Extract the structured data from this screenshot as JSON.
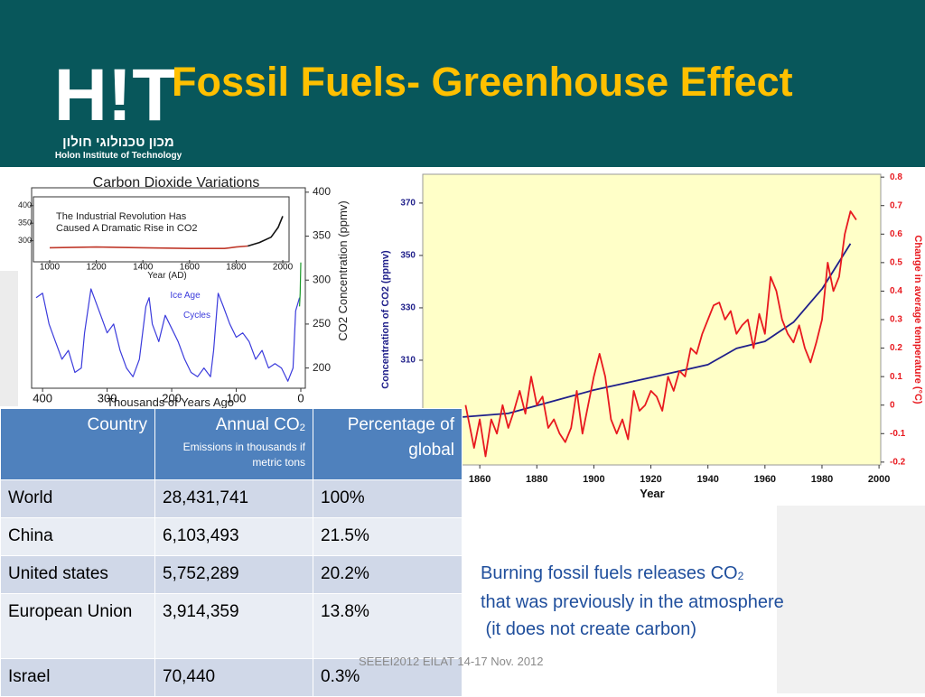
{
  "header": {
    "title": "Fossil Fuels- Greenhouse Effect",
    "logo": "H!T",
    "logo_hebrew": "מכון טכנולוגי חולון",
    "logo_english": "Holon Institute of Technology"
  },
  "chart_data": [
    {
      "type": "line",
      "title": "Carbon Dioxide Variations",
      "xlabel": "Thousands of Years Ago",
      "ylabel": "CO2 Concentration (ppmv)",
      "annotation": [
        "Ice Age",
        "Cycles"
      ],
      "xlim": [
        417,
        -7
      ],
      "ylim": [
        177,
        405
      ],
      "xticks": [
        400,
        300,
        200,
        100,
        0
      ],
      "yticks": [
        200,
        250,
        300,
        350,
        400
      ],
      "series": [
        {
          "color": "#3b3bdc",
          "x": [
            410,
            400,
            390,
            380,
            370,
            360,
            350,
            340,
            335,
            325,
            320,
            310,
            300,
            290,
            280,
            270,
            260,
            250,
            240,
            235,
            230,
            220,
            210,
            200,
            190,
            180,
            170,
            160,
            150,
            140,
            135,
            128,
            120,
            110,
            100,
            90,
            80,
            70,
            60,
            50,
            40,
            30,
            20,
            12,
            8,
            2
          ],
          "values": [
            280,
            285,
            250,
            230,
            210,
            220,
            195,
            200,
            240,
            290,
            280,
            260,
            240,
            250,
            220,
            200,
            190,
            210,
            270,
            280,
            250,
            230,
            260,
            245,
            230,
            210,
            195,
            190,
            200,
            190,
            220,
            285,
            270,
            250,
            235,
            240,
            230,
            210,
            220,
            200,
            205,
            200,
            185,
            200,
            265,
            280
          ]
        },
        {
          "color": "#1a9a2a",
          "x": [
            2,
            1,
            0
          ],
          "values": [
            270,
            285,
            320
          ]
        }
      ]
    },
    {
      "type": "line",
      "annotation": [
        "The Industrial Revolution Has",
        "Caused A Dramatic Rise in CO2"
      ],
      "xlabel": "Year (AD)",
      "xlim": [
        1000,
        2027
      ],
      "ylim": [
        245,
        420
      ],
      "xticks": [
        1000,
        1200,
        1400,
        1600,
        1800,
        2000
      ],
      "yticks": [
        300,
        350,
        400
      ],
      "series": [
        {
          "color": "#c0392b",
          "x": [
            1000,
            1200,
            1400,
            1600,
            1750,
            1800,
            1850
          ],
          "values": [
            280,
            282,
            280,
            278,
            278,
            282,
            285
          ]
        },
        {
          "color": "#111111",
          "x": [
            1850,
            1900,
            1950,
            1980,
            2000
          ],
          "values": [
            285,
            295,
            310,
            338,
            370
          ]
        }
      ]
    },
    {
      "type": "line",
      "xlabel": "Year",
      "ylabel": "Concentration of CO2 (ppmv)",
      "y2label": "Change in average temperature (°C)",
      "xlim": [
        1840,
        2000.6
      ],
      "ylim": [
        270,
        381
      ],
      "y2lim": [
        -0.21,
        0.81
      ],
      "xticks": [
        1860,
        1880,
        1900,
        1920,
        1940,
        1960,
        1980,
        2000
      ],
      "yticks": [
        310,
        330,
        350,
        370
      ],
      "y2ticks": [
        -0.2,
        -0.1,
        0,
        0.1,
        0.2,
        0.3,
        0.4,
        0.5,
        0.6,
        0.7,
        0.8
      ],
      "series": [
        {
          "color": "#1f1f8a",
          "x": [
            1854,
            1870,
            1900,
            1920,
            1940,
            1950,
            1960,
            1970,
            1980,
            1990
          ],
          "values": [
            288.3,
            289.7,
            298.6,
            303.4,
            308.3,
            314.5,
            317.2,
            324.5,
            337.2,
            354.5
          ]
        },
        {
          "color": "#e8191f",
          "axis": "y2",
          "x": [
            1855,
            1858,
            1860,
            1862,
            1864,
            1866,
            1868,
            1870,
            1872,
            1874,
            1876,
            1878,
            1880,
            1882,
            1884,
            1886,
            1888,
            1890,
            1892,
            1894,
            1896,
            1898,
            1900,
            1902,
            1904,
            1906,
            1908,
            1910,
            1912,
            1914,
            1916,
            1918,
            1920,
            1922,
            1924,
            1926,
            1928,
            1930,
            1932,
            1934,
            1936,
            1938,
            1940,
            1942,
            1944,
            1946,
            1948,
            1950,
            1952,
            1954,
            1956,
            1958,
            1960,
            1962,
            1964,
            1966,
            1968,
            1970,
            1972,
            1974,
            1976,
            1978,
            1980,
            1982,
            1984,
            1986,
            1988,
            1990,
            1992
          ],
          "values": [
            0.0,
            -0.15,
            -0.05,
            -0.18,
            -0.05,
            -0.1,
            0.0,
            -0.08,
            -0.02,
            0.05,
            -0.03,
            0.1,
            0.0,
            0.03,
            -0.08,
            -0.05,
            -0.1,
            -0.13,
            -0.08,
            0.05,
            -0.1,
            0.0,
            0.1,
            0.18,
            0.1,
            -0.05,
            -0.1,
            -0.05,
            -0.12,
            0.05,
            -0.02,
            0.0,
            0.05,
            0.03,
            -0.02,
            0.1,
            0.05,
            0.12,
            0.1,
            0.2,
            0.18,
            0.25,
            0.3,
            0.35,
            0.36,
            0.3,
            0.33,
            0.25,
            0.28,
            0.3,
            0.2,
            0.32,
            0.25,
            0.45,
            0.4,
            0.3,
            0.25,
            0.22,
            0.28,
            0.2,
            0.15,
            0.22,
            0.3,
            0.5,
            0.4,
            0.45,
            0.6,
            0.68,
            0.65
          ]
        }
      ]
    }
  ],
  "table": {
    "header": [
      {
        "text": "Country"
      },
      {
        "text": "Annual CO",
        "sub": "2",
        "note": "Emissions in thousands if metric tons"
      },
      {
        "text": "Percentage of global"
      }
    ],
    "rows": [
      [
        "World",
        "28,431,741",
        "100%"
      ],
      [
        "China",
        "6,103,493",
        "21.5%"
      ],
      [
        "United states",
        "5,752,289",
        "20.2%"
      ],
      [
        "European Union",
        "3,914,359",
        "13.8%"
      ],
      [
        "Israel",
        "70,440",
        "0.3%"
      ]
    ]
  },
  "text": {
    "line1": "Burning fossil fuels releases CO",
    "line1_sub": "2",
    "line2": "that was previously in the atmosphere",
    "line3": " (it does not create carbon)"
  },
  "footer": "SEEEI2012 EILAT 14-17 Nov. 2012"
}
